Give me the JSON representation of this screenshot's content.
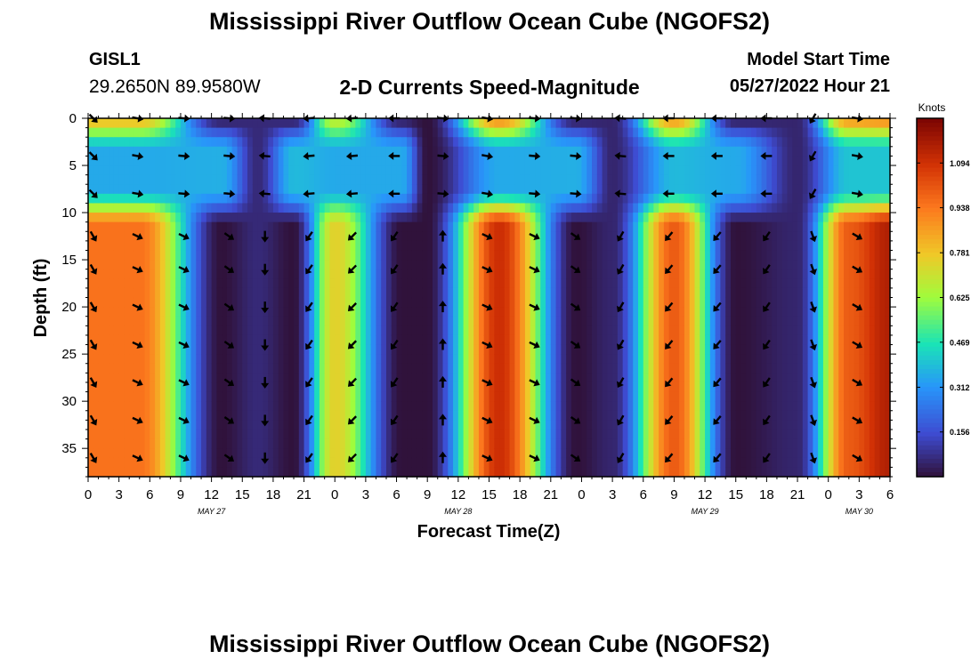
{
  "header": {
    "title": "Mississippi River Outflow Ocean Cube (NGOFS2)",
    "station_id": "GISL1",
    "station_coords": "29.2650N  89.9580W",
    "subtitle": "2-D Currents Speed-Magnitude",
    "model_start_label": "Model Start Time",
    "model_start_value": "05/27/2022 Hour 21"
  },
  "footer": {
    "title": "Mississippi River Outflow Ocean Cube (NGOFS2)"
  },
  "chart_data": {
    "type": "heatmap",
    "title": "2-D Currents Speed-Magnitude",
    "xlabel": "Forecast Time(Z)",
    "ylabel": "Depth (ft)",
    "x_range_hours": [
      0,
      78
    ],
    "y_range_ft": [
      0,
      38
    ],
    "x_ticks": [
      {
        "hour": 0,
        "label": "0"
      },
      {
        "hour": 3,
        "label": "3"
      },
      {
        "hour": 6,
        "label": "6"
      },
      {
        "hour": 9,
        "label": "9"
      },
      {
        "hour": 12,
        "label": "12"
      },
      {
        "hour": 15,
        "label": "15"
      },
      {
        "hour": 18,
        "label": "18"
      },
      {
        "hour": 21,
        "label": "21"
      },
      {
        "hour": 24,
        "label": "0"
      },
      {
        "hour": 27,
        "label": "3"
      },
      {
        "hour": 30,
        "label": "6"
      },
      {
        "hour": 33,
        "label": "9"
      },
      {
        "hour": 36,
        "label": "12"
      },
      {
        "hour": 39,
        "label": "15"
      },
      {
        "hour": 42,
        "label": "18"
      },
      {
        "hour": 45,
        "label": "21"
      },
      {
        "hour": 48,
        "label": "0"
      },
      {
        "hour": 51,
        "label": "3"
      },
      {
        "hour": 54,
        "label": "6"
      },
      {
        "hour": 57,
        "label": "9"
      },
      {
        "hour": 60,
        "label": "12"
      },
      {
        "hour": 63,
        "label": "15"
      },
      {
        "hour": 66,
        "label": "18"
      },
      {
        "hour": 69,
        "label": "21"
      },
      {
        "hour": 72,
        "label": "0"
      },
      {
        "hour": 75,
        "label": "3"
      },
      {
        "hour": 78,
        "label": "6"
      }
    ],
    "date_labels": [
      {
        "hour": 12,
        "label": "MAY 27"
      },
      {
        "hour": 36,
        "label": "MAY 28"
      },
      {
        "hour": 60,
        "label": "MAY 29"
      },
      {
        "hour": 75,
        "label": "MAY 30"
      }
    ],
    "y_ticks": [
      0,
      5,
      10,
      15,
      20,
      25,
      30,
      35
    ],
    "colorbar": {
      "label": "Knots",
      "min": 0.0,
      "max": 1.25,
      "ticks": [
        "0.156",
        "0.312",
        "0.469",
        "0.625",
        "0.781",
        "0.938",
        "1.094"
      ]
    },
    "speed_peaks": [
      {
        "hour": 5.0,
        "deep": 0.95,
        "upper": 0.85,
        "mid": 0.35
      },
      {
        "hour": 13.0,
        "deep": 0.0,
        "upper": 0.0,
        "mid": 0.36
      },
      {
        "hour": 16.5,
        "deep": 0.06,
        "upper": 0.06,
        "mid": 0.06
      },
      {
        "hour": 20.0,
        "deep": 0.0,
        "upper": 0.0,
        "mid": 0.38
      },
      {
        "hour": 24.0,
        "deep": 0.75,
        "upper": 0.72,
        "mid": 0.35
      },
      {
        "hour": 30.5,
        "deep": 0.0,
        "upper": 0.0,
        "mid": 0.35
      },
      {
        "hour": 33.0,
        "deep": 0.0,
        "upper": 0.0,
        "mid": 0.0
      },
      {
        "hour": 40.0,
        "deep": 1.1,
        "upper": 0.95,
        "mid": 0.35
      },
      {
        "hour": 47.5,
        "deep": 0.0,
        "upper": 0.0,
        "mid": 0.36
      },
      {
        "hour": 51.0,
        "deep": 0.05,
        "upper": 0.05,
        "mid": 0.05
      },
      {
        "hour": 57.0,
        "deep": 1.0,
        "upper": 0.92,
        "mid": 0.38
      },
      {
        "hour": 63.0,
        "deep": 0.0,
        "upper": 0.0,
        "mid": 0.35
      },
      {
        "hour": 69.0,
        "deep": 0.05,
        "upper": 0.05,
        "mid": 0.05
      },
      {
        "hour": 74.0,
        "deep": 1.0,
        "upper": 0.92,
        "mid": 0.4
      },
      {
        "hour": 78.0,
        "deep": 1.15,
        "upper": 0.95,
        "mid": 0.4
      }
    ],
    "vector_rows_ft": [
      0,
      4,
      8,
      12.5,
      16,
      20,
      24,
      28,
      32,
      36
    ],
    "vector_columns": [
      {
        "hour": 0.5,
        "upper": 45,
        "deep": 60
      },
      {
        "hour": 4.8,
        "upper": 10,
        "deep": 25
      },
      {
        "hour": 9.3,
        "upper": 5,
        "deep": 25
      },
      {
        "hour": 13.7,
        "upper": 5,
        "deep": 35
      },
      {
        "hour": 17.2,
        "upper": 185,
        "deep": 90
      },
      {
        "hour": 21.5,
        "upper": 175,
        "deep": 125
      },
      {
        "hour": 25.7,
        "upper": 175,
        "deep": 135
      },
      {
        "hour": 29.8,
        "upper": 180,
        "deep": 125
      },
      {
        "hour": 34.5,
        "upper": 5,
        "deep": 270
      },
      {
        "hour": 38.8,
        "upper": 10,
        "deep": 25
      },
      {
        "hour": 43.4,
        "upper": 5,
        "deep": 25
      },
      {
        "hour": 47.4,
        "upper": 5,
        "deep": 35
      },
      {
        "hour": 51.8,
        "upper": 185,
        "deep": 120
      },
      {
        "hour": 56.5,
        "upper": 180,
        "deep": 130
      },
      {
        "hour": 61.2,
        "upper": 180,
        "deep": 130
      },
      {
        "hour": 66.0,
        "upper": 180,
        "deep": 125
      },
      {
        "hour": 70.5,
        "upper": 120,
        "deep": 70
      },
      {
        "hour": 74.8,
        "upper": 10,
        "deep": 30
      }
    ]
  }
}
